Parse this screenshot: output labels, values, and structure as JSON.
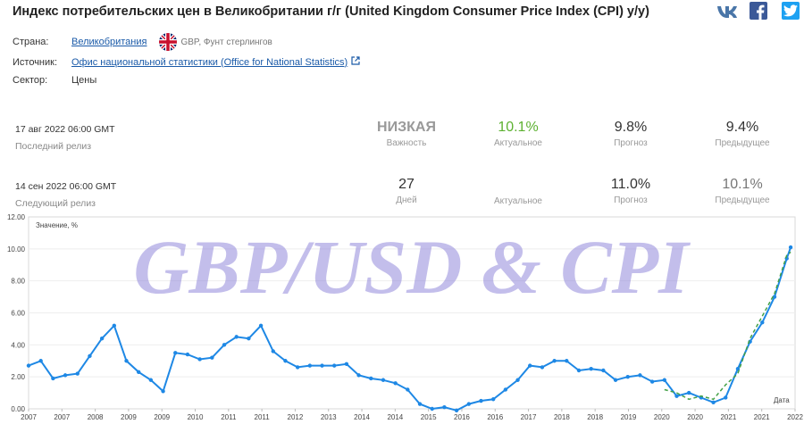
{
  "header": {
    "title": "Индекс потребительских цен в Великобритании г/г (United Kingdom Consumer Price Index (CPI) y/y)",
    "share": {
      "vk_icon": "vk-icon",
      "facebook_icon": "facebook-icon",
      "twitter_icon": "twitter-icon"
    }
  },
  "meta": {
    "country_label": "Страна:",
    "country_value": "Великобритания",
    "currency": "GBP, Фунт стерлингов",
    "source_label": "Источник:",
    "source_value": "Офис национальной статистики (Office for National Statistics)",
    "sector_label": "Сектор:",
    "sector_value": "Цены"
  },
  "last_release": {
    "date": "17 авг 2022 06:00 GMT",
    "label": "Последний релиз",
    "importance_value": "НИЗКАЯ",
    "importance_label": "Важность",
    "actual_value": "10.1%",
    "actual_label": "Актуальное",
    "forecast_value": "9.8%",
    "forecast_label": "Прогноз",
    "previous_value": "9.4%",
    "previous_label": "Предыдущее"
  },
  "next_release": {
    "date": "14 сен 2022 06:00 GMT",
    "label": "Следующий релиз",
    "days_value": "27",
    "days_label": "Дней",
    "actual_label": "Актуальное",
    "forecast_value": "11.0%",
    "forecast_label": "Прогноз",
    "previous_value": "10.1%",
    "previous_label": "Предыдущее"
  },
  "chart_data": {
    "type": "line",
    "ylabel": "Значение, %",
    "xlabel": "Дата",
    "watermark": "GBP/USD & CPI",
    "ylim": [
      0,
      12
    ],
    "yticks": [
      "0.00",
      "2.00",
      "4.00",
      "6.00",
      "8.00",
      "10.00",
      "12.00"
    ],
    "xlim": [
      2007,
      2022.67
    ],
    "xticks": [
      "2007",
      "2007",
      "2008",
      "2009",
      "2009",
      "2010",
      "2011",
      "2011",
      "2012",
      "2013",
      "2014",
      "2014",
      "2015",
      "2016",
      "2016",
      "2017",
      "2018",
      "2018",
      "2019",
      "2020",
      "2020",
      "2021",
      "2021",
      "2022"
    ],
    "grid": true,
    "colors": {
      "actual": "#1e88e5",
      "forecast": "#43a047"
    },
    "series": [
      {
        "key": "actual",
        "x": [
          2007.0,
          2007.25,
          2007.5,
          2007.75,
          2008.0,
          2008.25,
          2008.5,
          2008.75,
          2009.0,
          2009.25,
          2009.5,
          2009.75,
          2010.0,
          2010.25,
          2010.5,
          2010.75,
          2011.0,
          2011.25,
          2011.5,
          2011.75,
          2012.0,
          2012.25,
          2012.5,
          2012.75,
          2013.0,
          2013.25,
          2013.5,
          2013.75,
          2014.0,
          2014.25,
          2014.5,
          2014.75,
          2015.0,
          2015.25,
          2015.5,
          2015.75,
          2016.0,
          2016.25,
          2016.5,
          2016.75,
          2017.0,
          2017.25,
          2017.5,
          2017.75,
          2018.0,
          2018.25,
          2018.5,
          2018.75,
          2019.0,
          2019.25,
          2019.5,
          2019.75,
          2020.0,
          2020.25,
          2020.5,
          2020.75,
          2021.0,
          2021.25,
          2021.5,
          2021.75,
          2022.0,
          2022.25,
          2022.5,
          2022.58
        ],
        "y": [
          2.7,
          3.0,
          1.9,
          2.1,
          2.2,
          3.3,
          4.4,
          5.2,
          3.0,
          2.3,
          1.8,
          1.1,
          3.5,
          3.4,
          3.1,
          3.2,
          4.0,
          4.5,
          4.4,
          5.2,
          3.6,
          3.0,
          2.6,
          2.7,
          2.7,
          2.7,
          2.8,
          2.1,
          1.9,
          1.8,
          1.6,
          1.2,
          0.3,
          0.0,
          0.1,
          -0.1,
          0.3,
          0.5,
          0.6,
          1.2,
          1.8,
          2.7,
          2.6,
          3.0,
          3.0,
          2.4,
          2.5,
          2.4,
          1.8,
          2.0,
          2.1,
          1.7,
          1.8,
          0.8,
          1.0,
          0.7,
          0.4,
          0.7,
          2.5,
          4.2,
          5.4,
          7.0,
          9.4,
          10.1
        ]
      },
      {
        "key": "forecast",
        "x": [
          2020.0,
          2020.25,
          2020.5,
          2020.75,
          2021.0,
          2021.25,
          2021.5,
          2021.75,
          2022.0,
          2022.25,
          2022.5,
          2022.58
        ],
        "y": [
          1.2,
          1.0,
          0.6,
          0.8,
          0.6,
          1.5,
          2.2,
          4.4,
          5.8,
          7.2,
          9.6,
          9.8
        ]
      }
    ]
  }
}
